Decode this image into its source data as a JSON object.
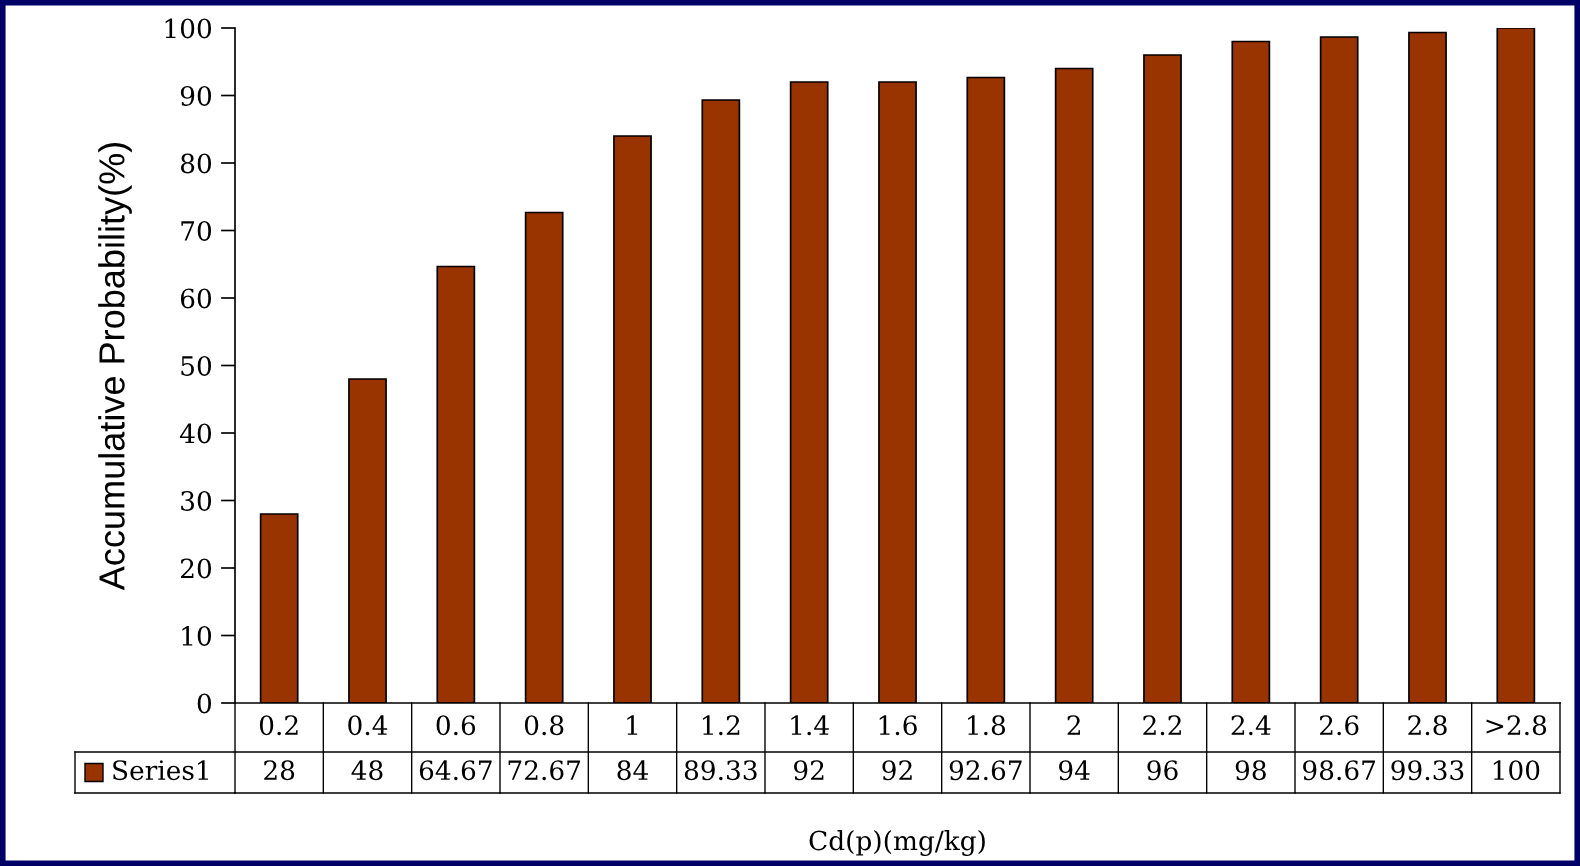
{
  "chart_data": {
    "type": "bar",
    "xlabel": "Cd(p)(mg/kg)",
    "ylabel": "Accumulative Probability(%)",
    "categories": [
      "0.2",
      "0.4",
      "0.6",
      "0.8",
      "1",
      "1.2",
      "1.4",
      "1.6",
      "1.8",
      "2",
      "2.2",
      "2.4",
      "2.6",
      "2.8",
      ">2.8"
    ],
    "series": [
      {
        "name": "Series1",
        "color": "#993300",
        "values": [
          28,
          48,
          64.67,
          72.67,
          84,
          89.33,
          92,
          92,
          92.67,
          94,
          96,
          98,
          98.67,
          99.33,
          100
        ]
      }
    ],
    "ylim": [
      0,
      100
    ],
    "yticks": [
      0,
      10,
      20,
      30,
      40,
      50,
      60,
      70,
      80,
      90,
      100
    ],
    "data_labels": true,
    "grid": false
  }
}
